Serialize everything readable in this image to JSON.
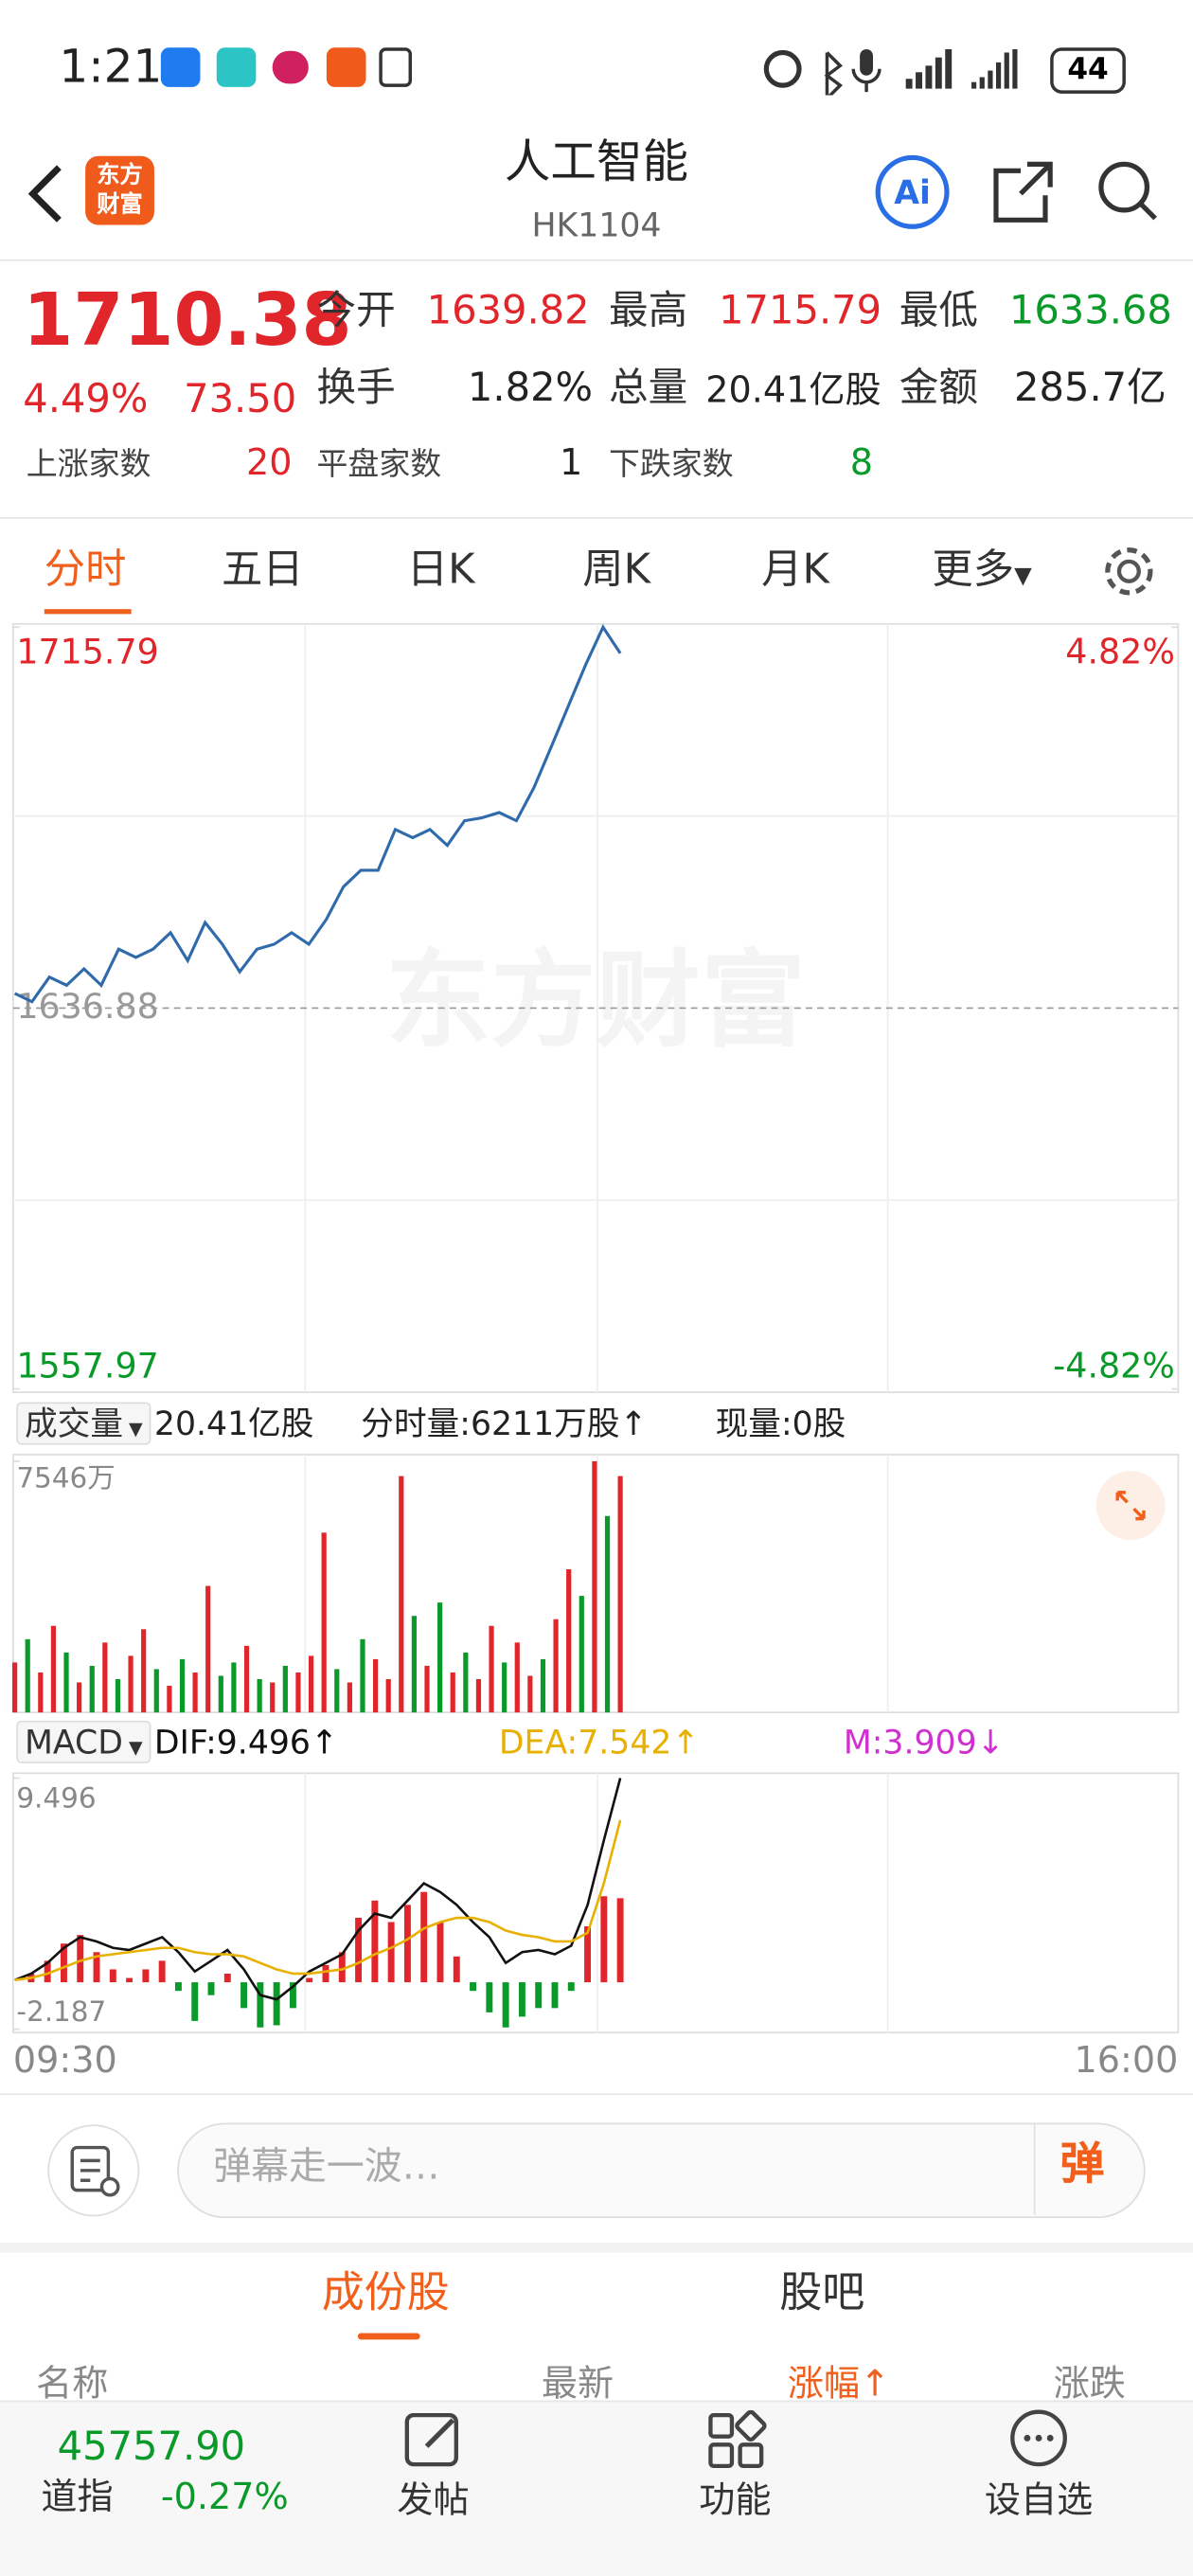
{
  "status_bar": {
    "time": "1:21",
    "battery": "44"
  },
  "header": {
    "logo": [
      "东方",
      "财富"
    ],
    "title": "人工智能",
    "code": "HK1104"
  },
  "quote": {
    "price": "1710.38",
    "change_pct": "4.49%",
    "change": "73.50",
    "stats": [
      {
        "label": "今开",
        "value": "1639.82",
        "color": "#e0262b"
      },
      {
        "label": "最高",
        "value": "1715.79",
        "color": "#e0262b"
      },
      {
        "label": "最低",
        "value": "1633.68",
        "color": "#0a9a2a"
      },
      {
        "label": "换手",
        "value": "1.82%",
        "color": "#222222"
      },
      {
        "label": "总量",
        "value": "20.41亿股",
        "color": "#222222"
      },
      {
        "label": "金额",
        "value": "285.7亿",
        "color": "#222222"
      }
    ],
    "breadth": [
      {
        "label": "上涨家数",
        "value": "20",
        "color": "#e0262b"
      },
      {
        "label": "平盘家数",
        "value": "1",
        "color": "#222222"
      },
      {
        "label": "下跌家数",
        "value": "8",
        "color": "#0a9a2a"
      }
    ]
  },
  "chart_tabs": [
    "分时",
    "五日",
    "日K",
    "周K",
    "月K",
    "更多"
  ],
  "chart_data": [
    {
      "type": "line",
      "watermark": "东方财富",
      "color": "#2f6aaa",
      "ylim": [
        1557.97,
        1715.79
      ],
      "yticks": [
        1557.97,
        1636.88,
        1715.79
      ],
      "y2lim": [
        -4.82,
        4.82
      ],
      "y2ticks": [
        {
          "value": -4.82,
          "label": "-4.82%"
        },
        {
          "value": 4.82,
          "label": "4.82%"
        }
      ],
      "values": [
        1639.9,
        1638.2,
        1643.3,
        1641.6,
        1645.0,
        1641.6,
        1649.1,
        1647.4,
        1649.1,
        1652.5,
        1646.7,
        1654.6,
        1650.1,
        1644.4,
        1649.1,
        1650.1,
        1652.5,
        1650.1,
        1655.2,
        1662.0,
        1665.4,
        1665.4,
        1673.9,
        1672.2,
        1673.9,
        1670.6,
        1675.7,
        1676.3,
        1677.4,
        1675.7,
        1682.5,
        1690.9,
        1699.5,
        1708.0,
        1715.79,
        1710.38
      ]
    },
    {
      "type": "bar",
      "header": [
        "成交量",
        "20.41亿股",
        "分时量:6211万股↑",
        "现量:0股"
      ],
      "up_color": "#e0262b",
      "down_color": "#0a9a2a",
      "ylim": [
        0,
        7546
      ],
      "yticks": [
        {
          "value": 7546,
          "label": "7546万"
        }
      ],
      "values": [
        1500,
        2200,
        1200,
        2600,
        1800,
        900,
        1400,
        2100,
        1000,
        1700,
        2500,
        1300,
        800,
        1600,
        1200,
        3800,
        1100,
        1500,
        2000,
        1000,
        900,
        1400,
        1200,
        1700,
        5400,
        1300,
        900,
        2200,
        1600,
        1000,
        7100,
        2900,
        1400,
        3300,
        1200,
        1800,
        1000,
        2600,
        1500,
        2100,
        1100,
        1600,
        2800,
        4300,
        3500,
        7546,
        5900,
        7100
      ],
      "direction": [
        "up",
        "down",
        "up",
        "up",
        "down",
        "up",
        "down",
        "up",
        "down",
        "up",
        "up",
        "down",
        "up",
        "down",
        "up",
        "up",
        "down",
        "down",
        "up",
        "down",
        "up",
        "down",
        "up",
        "up",
        "up",
        "down",
        "up",
        "down",
        "up",
        "up",
        "up",
        "down",
        "up",
        "down",
        "up",
        "down",
        "up",
        "up",
        "down",
        "up",
        "up",
        "down",
        "up",
        "up",
        "down",
        "up",
        "down",
        "up"
      ]
    },
    {
      "type": "macd",
      "title": "MACD",
      "up_color": "#e0262b",
      "down_color": "#0a9a2a",
      "ylim": [
        -2.187,
        9.496
      ],
      "yticks": [
        -2.187,
        9.496
      ],
      "series": [
        {
          "name": "DIF:9.496↑",
          "color": "#111111",
          "values": [
            0.1,
            0.4,
            0.9,
            1.6,
            2.1,
            1.9,
            1.6,
            1.5,
            1.8,
            2.1,
            1.4,
            0.5,
            1.0,
            1.5,
            0.6,
            -0.6,
            -0.8,
            -0.2,
            0.5,
            0.9,
            1.3,
            2.4,
            3.2,
            3.0,
            3.8,
            4.6,
            4.2,
            3.6,
            2.8,
            2.1,
            0.9,
            1.4,
            1.5,
            1.3,
            1.7,
            3.6,
            6.6,
            9.496
          ]
        },
        {
          "name": "DEA:7.542↑",
          "color": "#e8b000",
          "values": [
            0.1,
            0.2,
            0.4,
            0.7,
            1.0,
            1.2,
            1.3,
            1.4,
            1.5,
            1.6,
            1.6,
            1.4,
            1.3,
            1.3,
            1.2,
            0.9,
            0.6,
            0.4,
            0.4,
            0.5,
            0.6,
            0.9,
            1.3,
            1.6,
            2.0,
            2.5,
            2.8,
            3.0,
            3.0,
            2.8,
            2.4,
            2.2,
            2.1,
            1.9,
            1.9,
            2.3,
            4.6,
            7.542
          ]
        },
        {
          "name": "M:3.909↓",
          "color": "#d030d0",
          "values": [
            0,
            0.4,
            1.0,
            1.8,
            2.2,
            1.4,
            0.6,
            0.2,
            0.6,
            1.0,
            -0.4,
            -1.8,
            -0.6,
            0.4,
            -1.2,
            -2.1,
            -2.0,
            -1.2,
            0.2,
            0.8,
            1.4,
            3.0,
            3.8,
            2.8,
            3.6,
            4.2,
            2.8,
            1.2,
            -0.4,
            -1.4,
            -2.1,
            -1.6,
            -1.2,
            -1.2,
            -0.4,
            2.6,
            4.0,
            3.909
          ]
        }
      ],
      "x_labels": [
        "09:30",
        "16:00"
      ]
    }
  ],
  "comment_bar": {
    "placeholder": "弹幕走一波…",
    "button": "弹"
  },
  "list_tabs": [
    "成份股",
    "股吧"
  ],
  "list_header": [
    "名称",
    "最新",
    "涨幅",
    "涨跌"
  ],
  "bottom_nav": {
    "index_value": "45757.90",
    "index_name": "道指",
    "index_change": "-0.27%",
    "items": [
      "发帖",
      "功能",
      "设自选"
    ]
  }
}
